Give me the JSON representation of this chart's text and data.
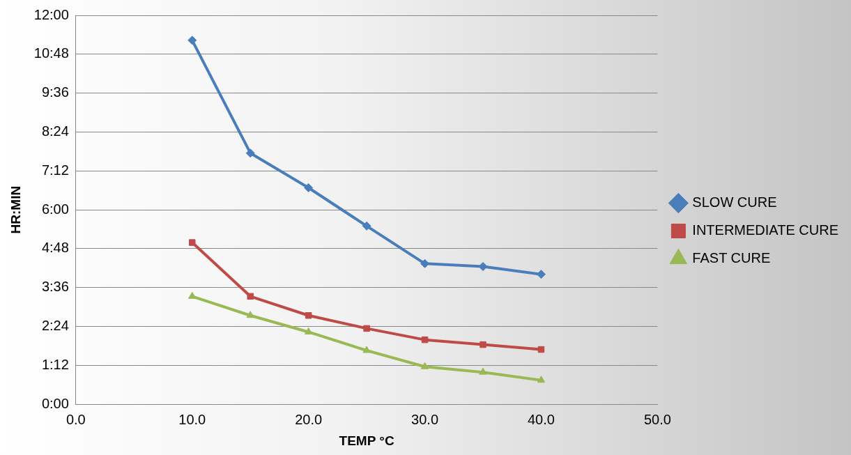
{
  "chart_data": {
    "type": "line",
    "xlabel": "TEMP °C",
    "ylabel": "HR:MIN",
    "x": [
      10,
      15,
      20,
      25,
      30,
      35,
      40
    ],
    "xlim": [
      0,
      50
    ],
    "xticks": [
      {
        "value": 0,
        "label": "0.0"
      },
      {
        "value": 10,
        "label": "10.0"
      },
      {
        "value": 20,
        "label": "20.0"
      },
      {
        "value": 30,
        "label": "30.0"
      },
      {
        "value": 40,
        "label": "40.0"
      },
      {
        "value": 50,
        "label": "50.0"
      }
    ],
    "ylim": [
      0,
      12
    ],
    "yticks": [
      {
        "value": 0,
        "label": "0:00"
      },
      {
        "value": 1.2,
        "label": "1:12"
      },
      {
        "value": 2.4,
        "label": "2:24"
      },
      {
        "value": 3.6,
        "label": "3:36"
      },
      {
        "value": 4.8,
        "label": "4:48"
      },
      {
        "value": 6,
        "label": "6:00"
      },
      {
        "value": 7.2,
        "label": "7:12"
      },
      {
        "value": 8.4,
        "label": "8:24"
      },
      {
        "value": 9.6,
        "label": "9:36"
      },
      {
        "value": 10.8,
        "label": "10:48"
      },
      {
        "value": 12,
        "label": "12:00"
      }
    ],
    "grid": "y",
    "legend": "right",
    "line_style": "solid",
    "series": [
      {
        "name": "SLOW CURE",
        "color": "#4a7ebb",
        "marker": "diamond",
        "values": [
          11.23,
          7.75,
          6.68,
          5.5,
          4.34,
          4.25,
          4.01
        ]
      },
      {
        "name": "INTERMEDIATE CURE",
        "color": "#be4b48",
        "marker": "square",
        "values": [
          4.99,
          3.33,
          2.74,
          2.34,
          1.99,
          1.84,
          1.69
        ]
      },
      {
        "name": "FAST CURE",
        "color": "#98b954",
        "marker": "triangle",
        "values": [
          3.33,
          2.74,
          2.23,
          1.66,
          1.16,
          0.99,
          0.74
        ]
      }
    ]
  }
}
